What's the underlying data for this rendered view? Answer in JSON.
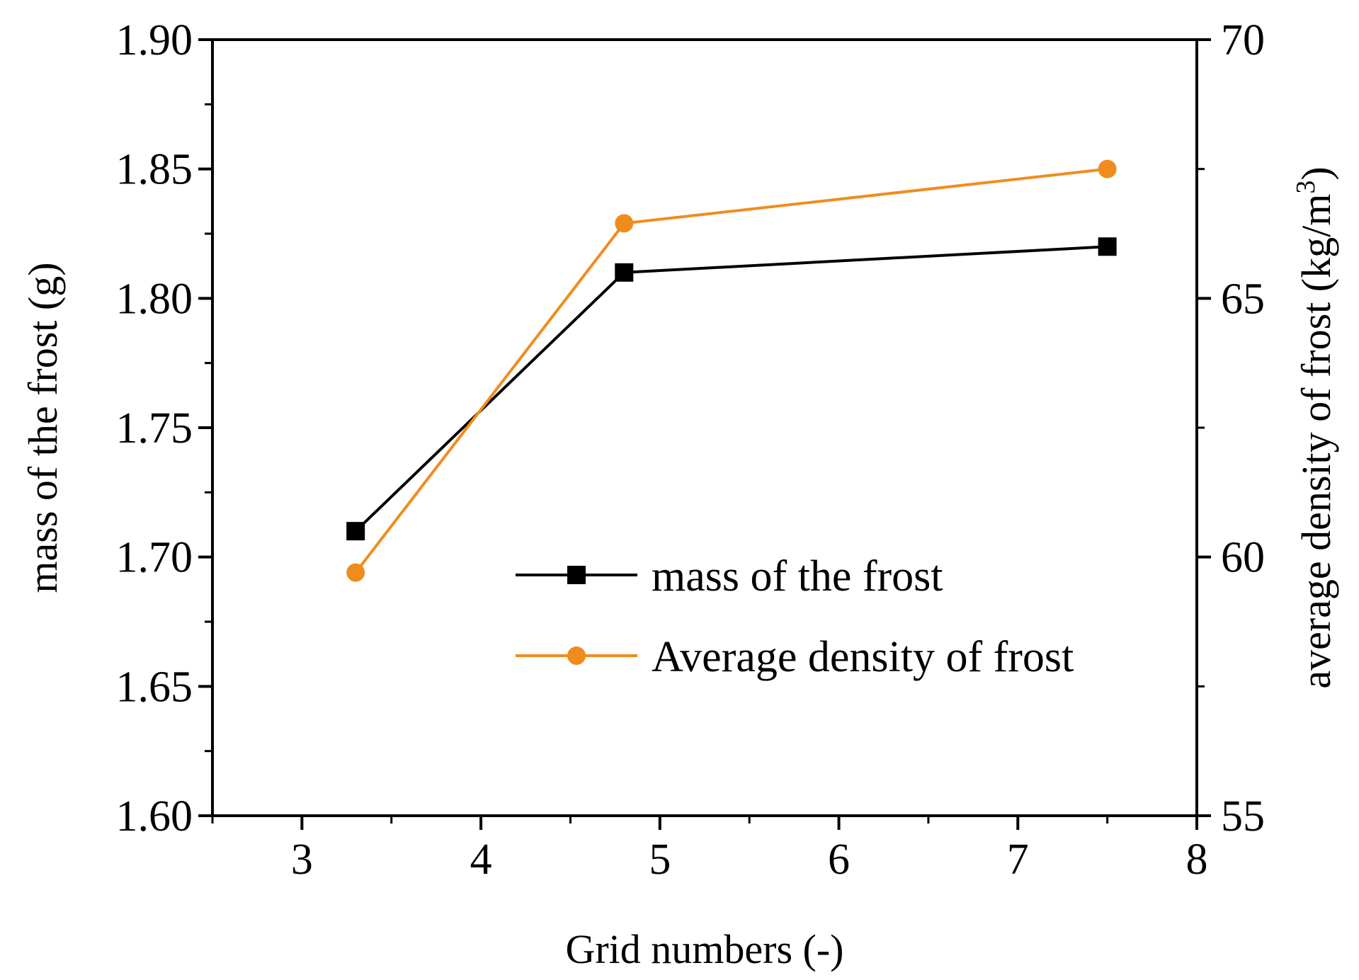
{
  "chart_data": {
    "type": "line",
    "xlabel": "Grid numbers (-)",
    "ylabel": "mass of the frost (g)",
    "y2label_main": "average density of frost (kg/m",
    "y2label_sup": "3",
    "y2label_close": ")",
    "xlim": [
      2.5,
      8
    ],
    "ylim": [
      1.6,
      1.9
    ],
    "y2lim": [
      55,
      70
    ],
    "xticks": [
      3,
      4,
      5,
      6,
      7,
      8
    ],
    "yticks": [
      "1.60",
      "1.65",
      "1.70",
      "1.75",
      "1.80",
      "1.85",
      "1.90"
    ],
    "y2ticks": [
      55,
      60,
      65,
      70
    ],
    "series": [
      {
        "name": "mass of the frost",
        "axis": "left",
        "color": "#000000",
        "marker": "square",
        "x": [
          3.3,
          4.8,
          7.5
        ],
        "y": [
          1.71,
          1.81,
          1.82
        ]
      },
      {
        "name": "Average density of frost",
        "axis": "right",
        "color": "#f08c1e",
        "marker": "circle",
        "x": [
          3.3,
          4.8,
          7.5
        ],
        "y": [
          59.7,
          66.45,
          67.5
        ]
      }
    ],
    "legend_position": "center-right"
  }
}
